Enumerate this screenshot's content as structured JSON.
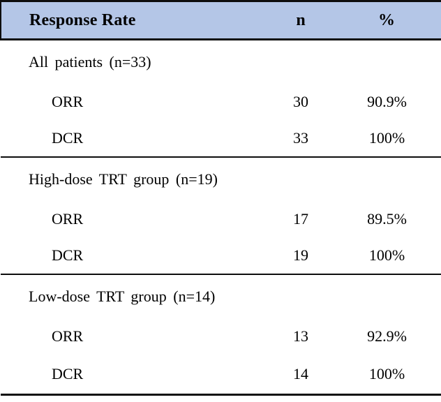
{
  "table": {
    "header": {
      "response_rate": "Response Rate",
      "n": "n",
      "percent": "%"
    },
    "colors": {
      "header_bg": "#b4c6e7",
      "border": "#0d0d0d",
      "text": "#000000"
    },
    "sections": [
      {
        "title": "All patients (n=33)",
        "rows": [
          {
            "label": "ORR",
            "n": "30",
            "pct": "90.9%"
          },
          {
            "label": "DCR",
            "n": "33",
            "pct": "100%"
          }
        ]
      },
      {
        "title": "High-dose TRT group (n=19)",
        "rows": [
          {
            "label": "ORR",
            "n": "17",
            "pct": "89.5%"
          },
          {
            "label": "DCR",
            "n": "19",
            "pct": "100%"
          }
        ]
      },
      {
        "title": "Low-dose TRT group (n=14)",
        "rows": [
          {
            "label": "ORR",
            "n": "13",
            "pct": "92.9%"
          },
          {
            "label": "DCR",
            "n": "14",
            "pct": "100%"
          }
        ]
      }
    ]
  }
}
